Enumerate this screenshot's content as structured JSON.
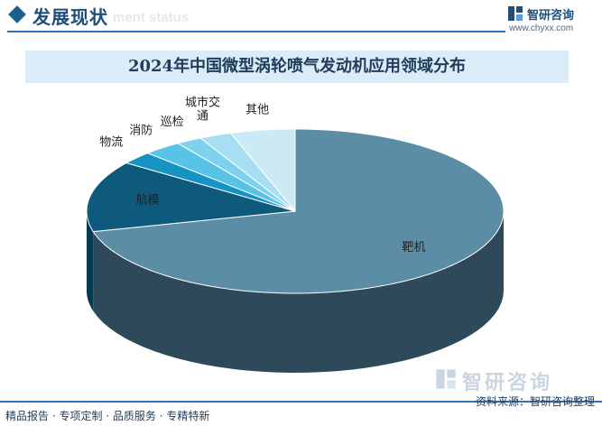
{
  "header": {
    "title": "发展现状",
    "subtitle_watermark": "ment status"
  },
  "logo": {
    "name": "智研咨询",
    "url": "www.chyxx.com"
  },
  "chart_data": {
    "type": "pie",
    "title": "2024年中国微型涡轮喷气发动机应用领域分布",
    "categories": [
      "靶机",
      "航模",
      "物流",
      "消防",
      "巡检",
      "城市交通",
      "其他"
    ],
    "values": [
      71.0,
      14.0,
      2.5,
      3.0,
      2.0,
      2.5,
      5.0
    ],
    "labels": [
      "靶机",
      "航模",
      "物流",
      "消防",
      "巡检",
      "城市交\n通",
      "其他"
    ],
    "colors": [
      "#5b8ea6",
      "#0e5a7c",
      "#1593c3",
      "#58c3e6",
      "#7fd1ee",
      "#a7def2",
      "#cceaf6"
    ],
    "side_colors": [
      "#2e4a5a",
      "#063a52",
      "#0b6a90",
      "#3a9ec0",
      "#5eb2d0",
      "#86c4dc",
      "#a6d2e4"
    ],
    "legend": "none",
    "grid": false
  },
  "footer": {
    "tags": "精品报告 · 专项定制 · 品质服务 · 专精特新",
    "source": "资料来源：智研咨询整理"
  },
  "watermark": {
    "text": "智研咨询"
  }
}
